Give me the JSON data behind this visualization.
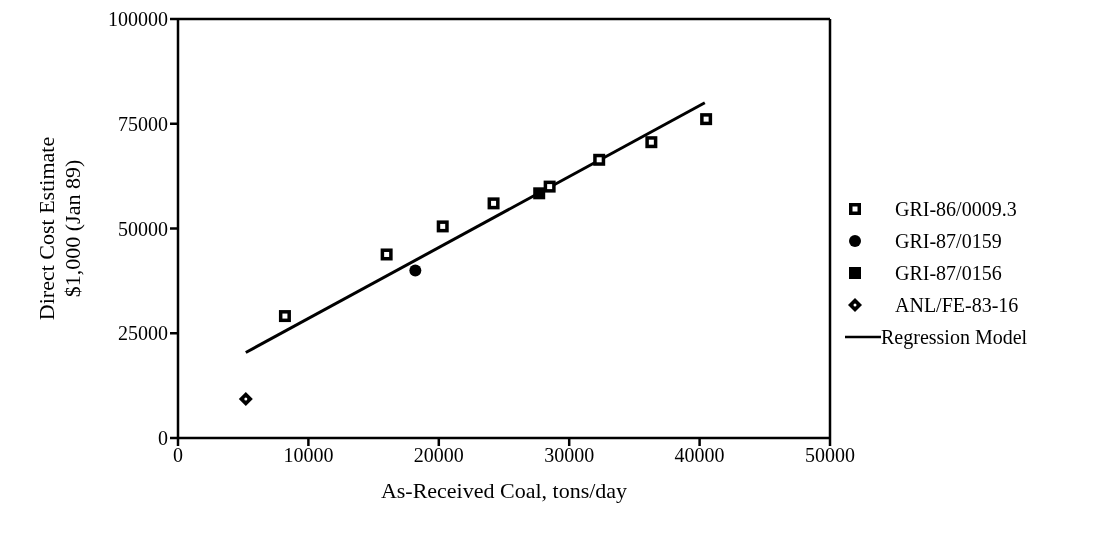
{
  "chart_data": {
    "type": "scatter",
    "xlabel": "As-Received Coal, tons/day",
    "ylabel": "Direct Cost Estimate\n$1,000 (Jan 89)",
    "xlim": [
      0,
      50000
    ],
    "xticks": [
      0,
      10000,
      20000,
      30000,
      40000,
      50000
    ],
    "ylim": [
      0,
      100000
    ],
    "yticks": [
      0,
      25000,
      50000,
      75000,
      100000
    ],
    "legend": "right",
    "series": [
      {
        "name": "GRI-86/0009.3",
        "color": "#000000",
        "marker": "square",
        "x": [
          8200,
          16000,
          20300,
          24200,
          28500,
          32300,
          36300,
          40500
        ],
        "values": [
          29100,
          43800,
          50500,
          56000,
          60000,
          66400,
          70600,
          76100
        ]
      },
      {
        "name": "GRI-87/0159",
        "color": "#000000",
        "marker": "circle",
        "x": [
          18200
        ],
        "values": [
          40000
        ]
      },
      {
        "name": "GRI-87/0156",
        "color": "#000000",
        "marker": "square",
        "x": [
          27700
        ],
        "values": [
          58400
        ]
      },
      {
        "name": "ANL/FE-83-16",
        "color": "#000000",
        "marker": "diamond",
        "x": [
          5200
        ],
        "values": [
          9300
        ]
      },
      {
        "name": "Regression Model",
        "type": "line",
        "color": "#000000",
        "marker": "none",
        "line_style": "solid",
        "x": [
          5200,
          40400
        ],
        "values": [
          20400,
          80000
        ]
      }
    ]
  }
}
